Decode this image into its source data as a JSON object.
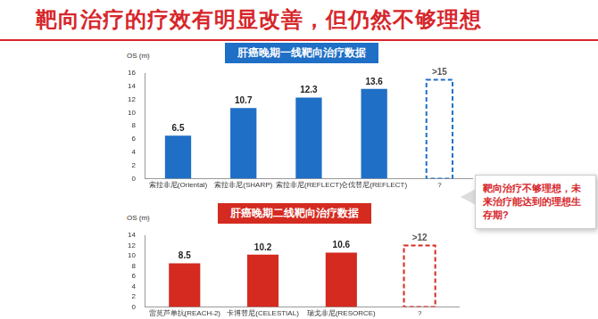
{
  "title": "靶向治疗的疗效有明显改善，但仍然不够理想",
  "callout": "靶向治疗不够理想，未来治疗能达到的理想生存期?",
  "chart_data": [
    {
      "type": "bar",
      "title": "肝癌晚期一线靶向治疗数据",
      "ylabel": "OS (m)",
      "categories": [
        "索拉非尼(Oriental)",
        "索拉非尼(SHARP)",
        "索拉非尼(REFLECT)",
        "仑伐替尼(REFLECT)",
        "?"
      ],
      "series": [
        {
          "color": "#1f6fc6",
          "values": [
            6.5,
            10.7,
            12.3,
            13.6,
            null
          ],
          "value_labels": [
            "6.5",
            "10.7",
            "12.3",
            "13.6",
            null
          ]
        },
        {
          "color": "#1f6fc6",
          "line_style": "dashed",
          "values": [
            null,
            null,
            null,
            null,
            15
          ],
          "value_labels": [
            null,
            null,
            null,
            null,
            ">15"
          ]
        }
      ],
      "ylim": [
        0,
        16
      ],
      "yticks": [
        0,
        2,
        4,
        6,
        8,
        10,
        12,
        14,
        16
      ],
      "grid": false,
      "data_labels": true
    },
    {
      "type": "bar",
      "title": "肝癌晚期二线靶向治疗数据",
      "ylabel": "OS (m)",
      "categories": [
        "雷莫芦单抗(REACH-2)",
        "卡博替尼(CELESTIAL)",
        "瑞戈非尼(RESORCE)",
        "?"
      ],
      "series": [
        {
          "color": "#d42a20",
          "values": [
            8.5,
            10.2,
            10.6,
            null
          ],
          "value_labels": [
            "8.5",
            "10.2",
            "10.6",
            null
          ]
        },
        {
          "color": "#d42a20",
          "line_style": "dashed",
          "values": [
            null,
            null,
            null,
            12
          ],
          "value_labels": [
            null,
            null,
            null,
            ">12"
          ]
        }
      ],
      "ylim": [
        0,
        14
      ],
      "yticks": [
        0,
        2,
        4,
        6,
        8,
        10,
        12,
        14
      ],
      "grid": false,
      "data_labels": true
    }
  ]
}
